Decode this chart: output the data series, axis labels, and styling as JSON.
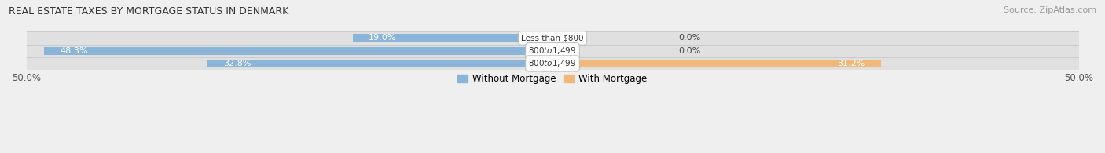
{
  "title": "REAL ESTATE TAXES BY MORTGAGE STATUS IN DENMARK",
  "source": "Source: ZipAtlas.com",
  "rows": [
    {
      "category": "Less than $800",
      "without": 19.0,
      "with": 0.0
    },
    {
      "category": "$800 to $1,499",
      "without": 48.3,
      "with": 0.0
    },
    {
      "category": "$800 to $1,499",
      "without": 32.8,
      "with": 31.2
    }
  ],
  "xlim": [
    -50,
    50
  ],
  "color_without": "#8ab4d8",
  "color_with": "#f0b87a",
  "bar_height": 0.62,
  "bg_color": "#efefef",
  "row_bg_even": "#e8e8e8",
  "row_bg_odd": "#dcdcdc",
  "figsize": [
    14.06,
    1.95
  ],
  "dpi": 100,
  "title_fontsize": 9.0,
  "source_fontsize": 8.0,
  "label_fontsize": 8.0,
  "cat_fontsize": 7.5
}
